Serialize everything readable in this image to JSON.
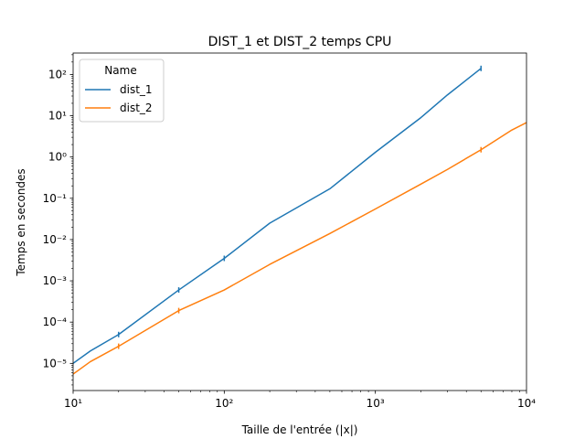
{
  "chart_data": {
    "type": "line",
    "title": "DIST_1 et DIST_2 temps CPU",
    "xlabel": "Taille de l'entrée (|x|)",
    "ylabel": "Temps en secondes",
    "xscale": "log",
    "yscale": "log",
    "xlim": [
      10,
      10000
    ],
    "ylim": [
      2.2e-06,
      330
    ],
    "x_ticks": [
      {
        "value": 10,
        "label": "10¹"
      },
      {
        "value": 100,
        "label": "10²"
      },
      {
        "value": 1000,
        "label": "10³"
      },
      {
        "value": 10000,
        "label": "10⁴"
      }
    ],
    "y_ticks": [
      {
        "value": 1e-05,
        "label": "10⁻⁵"
      },
      {
        "value": 0.0001,
        "label": "10⁻⁴"
      },
      {
        "value": 0.001,
        "label": "10⁻³"
      },
      {
        "value": 0.01,
        "label": "10⁻²"
      },
      {
        "value": 0.1,
        "label": "10⁻¹"
      },
      {
        "value": 1,
        "label": "10⁰"
      },
      {
        "value": 10,
        "label": "10¹"
      },
      {
        "value": 100,
        "label": "10²"
      }
    ],
    "grid": false,
    "legend": {
      "title": "Name",
      "position": "top-left"
    },
    "series": [
      {
        "name": "dist_1",
        "color": "#1f77b4",
        "x": [
          10,
          13,
          20,
          50,
          100,
          200,
          500,
          1000,
          2000,
          3000,
          5000
        ],
        "y": [
          1e-05,
          2e-05,
          5e-05,
          0.0006,
          0.0035,
          0.025,
          0.17,
          1.3,
          9,
          32,
          140
        ],
        "error_bars_at": [
          20,
          50,
          100,
          5000
        ]
      },
      {
        "name": "dist_2",
        "color": "#ff7f0e",
        "x": [
          10,
          13,
          20,
          50,
          100,
          200,
          500,
          1000,
          2000,
          3000,
          5000,
          8000,
          10000
        ],
        "y": [
          5.5e-06,
          1.1e-05,
          2.6e-05,
          0.00019,
          0.0006,
          0.0025,
          0.014,
          0.055,
          0.22,
          0.5,
          1.5,
          4.5,
          6.8
        ],
        "error_bars_at": [
          20,
          50,
          5000
        ]
      }
    ]
  }
}
